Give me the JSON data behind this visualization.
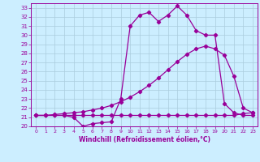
{
  "xlabel": "Windchill (Refroidissement éolien,°C)",
  "background_color": "#cceeff",
  "grid_color": "#aaccdd",
  "line_color": "#990099",
  "xlim": [
    -0.5,
    23.5
  ],
  "ylim": [
    20,
    33.5
  ],
  "xticks": [
    0,
    1,
    2,
    3,
    4,
    5,
    6,
    7,
    8,
    9,
    10,
    11,
    12,
    13,
    14,
    15,
    16,
    17,
    18,
    19,
    20,
    21,
    22,
    23
  ],
  "yticks": [
    20,
    21,
    22,
    23,
    24,
    25,
    26,
    27,
    28,
    29,
    30,
    31,
    32,
    33
  ],
  "line1_x": [
    0,
    1,
    2,
    3,
    4,
    5,
    6,
    7,
    8,
    9,
    10,
    11,
    12,
    13,
    14,
    15,
    16,
    17,
    18,
    19,
    20,
    21,
    22,
    23
  ],
  "line1_y": [
    21.2,
    21.2,
    21.2,
    21.2,
    21.2,
    21.2,
    21.2,
    21.2,
    21.2,
    21.2,
    21.2,
    21.2,
    21.2,
    21.2,
    21.2,
    21.2,
    21.2,
    21.2,
    21.2,
    21.2,
    21.2,
    21.2,
    21.4,
    21.5
  ],
  "line2_x": [
    0,
    1,
    2,
    3,
    4,
    5,
    6,
    7,
    8,
    9,
    10,
    11,
    12,
    13,
    14,
    15,
    16,
    17,
    18,
    19,
    20,
    21,
    22,
    23
  ],
  "line2_y": [
    21.2,
    21.2,
    21.3,
    21.4,
    21.5,
    21.6,
    21.8,
    22.0,
    22.3,
    22.7,
    23.2,
    23.8,
    24.5,
    25.3,
    26.2,
    27.1,
    27.9,
    28.5,
    28.8,
    28.5,
    27.8,
    25.5,
    22.0,
    21.5
  ],
  "line3_x": [
    0,
    1,
    2,
    3,
    4,
    5,
    6,
    7,
    8,
    9,
    10,
    11,
    12,
    13,
    14,
    15,
    16,
    17,
    18,
    19,
    20,
    21,
    22,
    23
  ],
  "line3_y": [
    21.2,
    21.2,
    21.2,
    21.2,
    21.0,
    20.0,
    20.3,
    20.4,
    20.5,
    23.0,
    31.0,
    32.2,
    32.5,
    31.5,
    32.2,
    33.2,
    32.2,
    30.5,
    30.0,
    30.0,
    22.5,
    21.5,
    21.2,
    21.2
  ]
}
